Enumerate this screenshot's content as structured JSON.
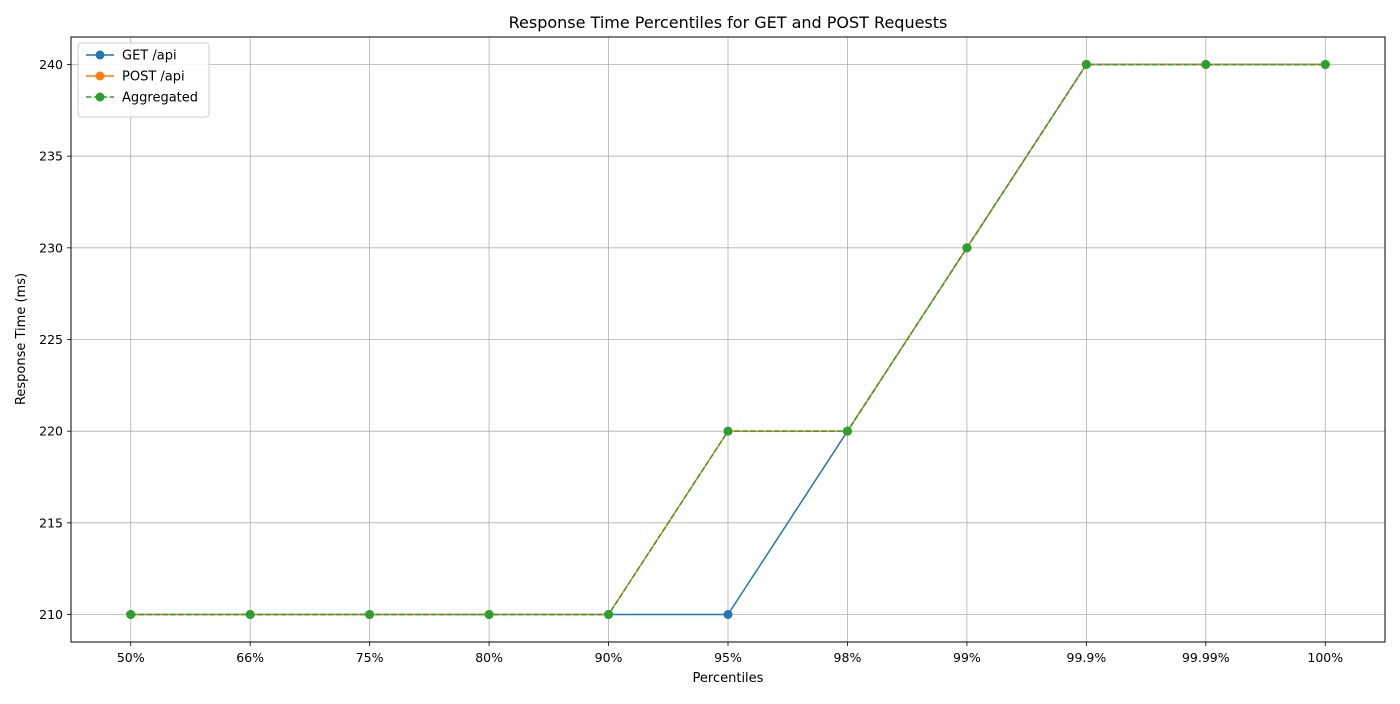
{
  "chart_data": {
    "type": "line",
    "title": "Response Time Percentiles for GET and POST Requests",
    "xlabel": "Percentiles",
    "ylabel": "Response Time (ms)",
    "categories": [
      "50%",
      "66%",
      "75%",
      "80%",
      "90%",
      "95%",
      "98%",
      "99%",
      "99.9%",
      "99.99%",
      "100%"
    ],
    "ylim": [
      208.5,
      241.5
    ],
    "yticks": [
      210,
      215,
      220,
      225,
      230,
      235,
      240
    ],
    "grid": true,
    "legend_position": "top-left",
    "series": [
      {
        "name": "GET /api",
        "color": "#1f77b4",
        "line_style": "solid",
        "marker": "circle",
        "values": [
          210,
          210,
          210,
          210,
          210,
          210,
          220,
          230,
          240,
          240,
          240
        ]
      },
      {
        "name": "POST /api",
        "color": "#ff7f0e",
        "line_style": "solid",
        "marker": "circle",
        "values": [
          210,
          210,
          210,
          210,
          210,
          220,
          220,
          230,
          240,
          240,
          240
        ]
      },
      {
        "name": "Aggregated",
        "color": "#2ca02c",
        "line_style": "dashed",
        "marker": "circle",
        "values": [
          210,
          210,
          210,
          210,
          210,
          220,
          220,
          230,
          240,
          240,
          240
        ]
      }
    ]
  }
}
